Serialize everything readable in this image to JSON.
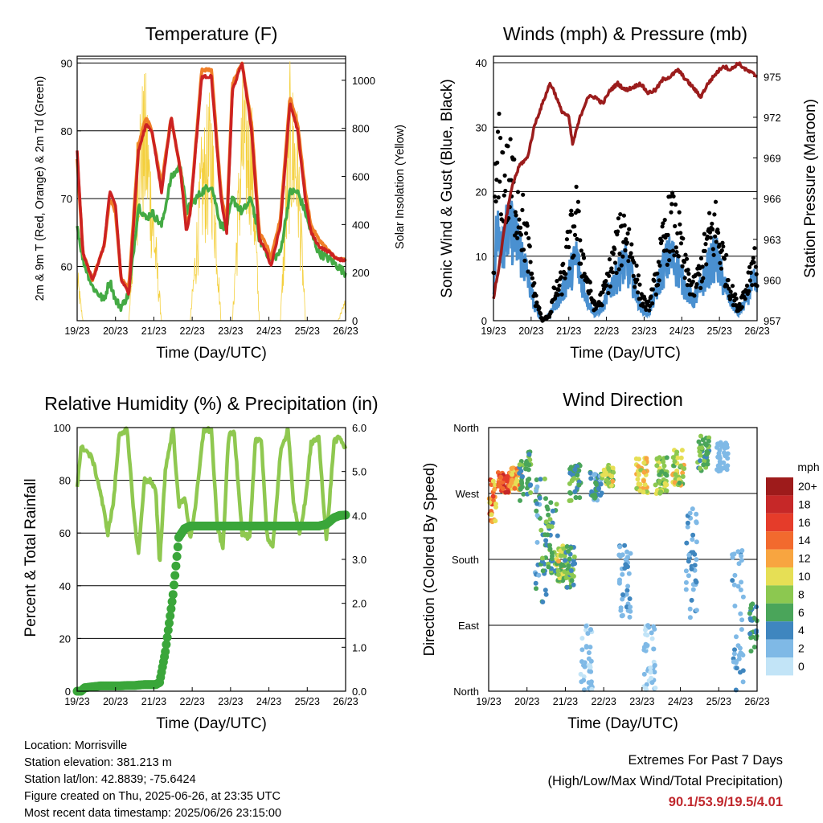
{
  "chart_data": [
    {
      "type": "line",
      "title": "Temperature (F)",
      "xlabel": "Time (Day/UTC)",
      "ylabel": "2m & 9m T (Red, Orange) & 2m Td (Green)",
      "ylabel_right": "Solar Insolation (Yellow)",
      "x_ticks": [
        "19/23",
        "20/23",
        "21/23",
        "22/23",
        "23/23",
        "24/23",
        "25/23",
        "26/23"
      ],
      "ylim": [
        52,
        91
      ],
      "yticks": [
        60,
        70,
        80,
        90
      ],
      "ylim_right": [
        0,
        1100
      ],
      "yticks_right": [
        0,
        200,
        400,
        600,
        800,
        1000
      ],
      "grid": "horizontal",
      "x_days": [
        0,
        0.15,
        0.4,
        0.7,
        0.85,
        1.0,
        1.15,
        1.35,
        1.6,
        1.8,
        1.95,
        2.2,
        2.45,
        2.7,
        2.85,
        2.95,
        3.25,
        3.5,
        3.75,
        3.9,
        4.05,
        4.3,
        4.55,
        4.75,
        4.95,
        5.05,
        5.3,
        5.55,
        5.75,
        5.95,
        6.1,
        6.3,
        6.6,
        6.8,
        7.0
      ],
      "series": [
        {
          "name": "2m T",
          "color": "#cc2222",
          "values": [
            77,
            62,
            58,
            63,
            71,
            69,
            58,
            56,
            77,
            81,
            80,
            71,
            82,
            74,
            65,
            68,
            88,
            88,
            70,
            65,
            86,
            90,
            80,
            64,
            62,
            60,
            66,
            84,
            80,
            70,
            65,
            63,
            62,
            61,
            61
          ]
        },
        {
          "name": "9m T",
          "color": "#f07f28",
          "values": [
            76,
            62,
            58,
            63,
            70,
            68,
            58,
            57,
            78,
            82,
            80,
            72,
            82,
            74,
            66,
            68,
            89,
            89,
            71,
            66,
            87,
            90,
            81,
            65,
            63,
            61,
            67,
            85,
            81,
            71,
            66,
            64,
            62,
            61,
            61
          ]
        },
        {
          "name": "2m Td",
          "color": "#44aa44",
          "values": [
            66,
            61,
            57,
            55,
            58,
            55,
            54,
            56,
            69,
            67,
            68,
            66,
            73,
            75,
            68,
            69,
            71,
            72,
            66,
            66,
            70,
            68,
            70,
            64,
            62,
            61,
            62,
            71,
            71,
            68,
            65,
            62,
            61,
            60,
            59
          ]
        },
        {
          "name": "Solar",
          "color": "#f4d03f",
          "axis": "right",
          "values": [
            250,
            0,
            0,
            0,
            0,
            0,
            0,
            0,
            1000,
            1050,
            650,
            0,
            0,
            0,
            0,
            0,
            800,
            1000,
            0,
            0,
            0,
            1050,
            1000,
            0,
            0,
            0,
            0,
            1080,
            900,
            0,
            0,
            0,
            0,
            0,
            100
          ]
        }
      ]
    },
    {
      "type": "scatter",
      "title": "Winds (mph) & Pressure (mb)",
      "xlabel": "Time (Day/UTC)",
      "ylabel": "Sonic Wind & Gust (Blue, Black)",
      "ylabel_right": "Station Pressure (Maroon)",
      "x_ticks": [
        "19/23",
        "20/23",
        "21/23",
        "22/23",
        "23/23",
        "24/23",
        "25/23",
        "26/23"
      ],
      "ylim": [
        0,
        41
      ],
      "yticks": [
        0,
        10,
        20,
        30,
        40
      ],
      "ylim_right": [
        957,
        976.5
      ],
      "yticks_right": [
        957,
        960,
        963,
        966,
        969,
        972,
        975
      ],
      "grid": "horizontal",
      "x_days": [
        0,
        0.05,
        0.15,
        0.3,
        0.5,
        0.7,
        0.9,
        1.1,
        1.3,
        1.5,
        1.6,
        1.8,
        2.0,
        2.1,
        2.2,
        2.3,
        2.5,
        2.7,
        2.9,
        3.1,
        3.3,
        3.5,
        3.7,
        3.9,
        4.1,
        4.3,
        4.5,
        4.7,
        4.9,
        5.1,
        5.3,
        5.5,
        5.7,
        5.9,
        6.1,
        6.3,
        6.5,
        6.7,
        6.9,
        7.0
      ],
      "series": [
        {
          "name": "Pressure",
          "color": "#9b1c1c",
          "axis": "right",
          "values": [
            958.5,
            959.5,
            961,
            964,
            967,
            968.5,
            969,
            971.5,
            973,
            974.5,
            974,
            972.5,
            972,
            970,
            971,
            972,
            973.5,
            973.5,
            973,
            974,
            974.5,
            974,
            974.2,
            974.5,
            973.8,
            974,
            974.8,
            975,
            975.5,
            974.8,
            974.2,
            973.5,
            974.5,
            975.2,
            975.8,
            975.5,
            976,
            975.5,
            975.2,
            975
          ]
        },
        {
          "name": "Gust",
          "color": "#000000",
          "values": [
            8,
            20,
            25,
            22,
            22,
            18,
            12,
            4,
            0,
            1,
            4,
            6,
            12,
            14,
            17,
            12,
            6,
            2,
            4,
            8,
            12,
            15,
            10,
            4,
            2,
            6,
            12,
            16,
            14,
            8,
            5,
            8,
            13,
            15,
            10,
            5,
            2,
            5,
            10,
            8
          ]
        },
        {
          "name": "Wind",
          "color": "#4a90d0",
          "values": [
            4,
            12,
            14,
            13,
            14,
            11,
            7,
            2,
            0,
            1,
            2,
            4,
            7,
            8,
            10,
            7,
            3,
            1,
            2,
            5,
            7,
            9,
            6,
            2,
            1,
            4,
            8,
            10,
            8,
            5,
            3,
            5,
            8,
            10,
            6,
            3,
            1,
            3,
            6,
            5
          ]
        }
      ]
    },
    {
      "type": "line",
      "title": "Relative Humidity (%) & Precipitation (in)",
      "xlabel": "Time (Day/UTC)",
      "ylabel": "Percent & Total Rainfall",
      "x_ticks": [
        "19/23",
        "20/23",
        "21/23",
        "22/23",
        "23/23",
        "24/23",
        "25/23",
        "26/23"
      ],
      "ylim": [
        0,
        100
      ],
      "yticks": [
        0,
        20,
        40,
        60,
        80,
        100
      ],
      "ylim_right": [
        0,
        6
      ],
      "yticks_right": [
        "0.0",
        "1.0",
        "2.0",
        "3.0",
        "4.0",
        "5.0",
        "6.0"
      ],
      "grid": "horizontal",
      "x_days": [
        0,
        0.1,
        0.2,
        0.4,
        0.6,
        0.8,
        0.95,
        1.1,
        1.3,
        1.5,
        1.6,
        1.75,
        1.9,
        2.05,
        2.15,
        2.3,
        2.5,
        2.65,
        2.8,
        2.95,
        3.1,
        3.3,
        3.5,
        3.65,
        3.8,
        3.95,
        4.1,
        4.3,
        4.5,
        4.65,
        4.8,
        4.95,
        5.1,
        5.3,
        5.5,
        5.65,
        5.8,
        5.95,
        6.1,
        6.3,
        6.5,
        6.7,
        6.85,
        7.0
      ],
      "series": [
        {
          "name": "RH",
          "color": "#8fc850",
          "values": [
            78,
            92,
            92,
            88,
            76,
            60,
            72,
            98,
            99,
            64,
            52,
            80,
            80,
            76,
            48,
            84,
            100,
            70,
            74,
            58,
            72,
            99,
            99,
            63,
            54,
            97,
            98,
            60,
            58,
            95,
            96,
            59,
            54,
            90,
            100,
            70,
            60,
            72,
            94,
            96,
            57,
            95,
            96,
            92
          ]
        },
        {
          "name": "Precip",
          "color": "#3aa63a",
          "axis": "right",
          "values": [
            0,
            0,
            0.08,
            0.1,
            0.12,
            0.12,
            0.12,
            0.12,
            0.13,
            0.13,
            0.14,
            0.15,
            0.15,
            0.15,
            0.2,
            0.9,
            2.2,
            3.5,
            3.7,
            3.76,
            3.76,
            3.76,
            3.76,
            3.76,
            3.76,
            3.76,
            3.76,
            3.76,
            3.76,
            3.76,
            3.76,
            3.76,
            3.76,
            3.76,
            3.76,
            3.76,
            3.76,
            3.76,
            3.76,
            3.76,
            3.8,
            3.95,
            4.0,
            4.01
          ]
        }
      ]
    },
    {
      "type": "scatter",
      "title": "Wind Direction",
      "xlabel": "Time (Day/UTC)",
      "ylabel": "Direction (Colored By Speed)",
      "x_ticks": [
        "19/23",
        "20/23",
        "21/23",
        "22/23",
        "23/23",
        "24/23",
        "25/23",
        "26/23"
      ],
      "yticks": [
        "North",
        "East",
        "South",
        "West",
        "North"
      ],
      "ylim": [
        0,
        360
      ],
      "grid": "horizontal",
      "colorbar": {
        "title": "mph",
        "labels": [
          "20+",
          "18",
          "16",
          "14",
          "12",
          "10",
          "8",
          "6",
          "4",
          "2",
          "0"
        ],
        "colors": [
          "#9e1b1b",
          "#c62828",
          "#e53c2a",
          "#f26a2e",
          "#f8a540",
          "#e6df55",
          "#8cc850",
          "#4aa55a",
          "#3f86bf",
          "#7fb9e6",
          "#c2e4f7"
        ]
      },
      "clusters": [
        {
          "day": 0.05,
          "dir": [
            230,
            290
          ],
          "speed": [
            10,
            16
          ]
        },
        {
          "day": 0.4,
          "dir": [
            270,
            300
          ],
          "speed": [
            12,
            18
          ]
        },
        {
          "day": 0.7,
          "dir": [
            275,
            305
          ],
          "speed": [
            10,
            14
          ]
        },
        {
          "day": 0.95,
          "dir": [
            260,
            330
          ],
          "speed": [
            4,
            8
          ]
        },
        {
          "day": 1.35,
          "dir": [
            120,
            290
          ],
          "speed": [
            2,
            8
          ]
        },
        {
          "day": 1.65,
          "dir": [
            160,
            260
          ],
          "speed": [
            3,
            8
          ]
        },
        {
          "day": 1.9,
          "dir": [
            150,
            200
          ],
          "speed": [
            6,
            12
          ]
        },
        {
          "day": 2.1,
          "dir": [
            140,
            200
          ],
          "speed": [
            3,
            9
          ]
        },
        {
          "day": 2.25,
          "dir": [
            260,
            310
          ],
          "speed": [
            4,
            8
          ]
        },
        {
          "day": 2.55,
          "dir": [
            0,
            90
          ],
          "speed": [
            0,
            3
          ]
        },
        {
          "day": 2.8,
          "dir": [
            260,
            300
          ],
          "speed": [
            2,
            6
          ]
        },
        {
          "day": 3.1,
          "dir": [
            280,
            310
          ],
          "speed": [
            6,
            12
          ]
        },
        {
          "day": 3.55,
          "dir": [
            100,
            200
          ],
          "speed": [
            1,
            4
          ]
        },
        {
          "day": 4.0,
          "dir": [
            270,
            320
          ],
          "speed": [
            8,
            13
          ]
        },
        {
          "day": 4.2,
          "dir": [
            0,
            90
          ],
          "speed": [
            0,
            2
          ]
        },
        {
          "day": 4.5,
          "dir": [
            270,
            320
          ],
          "speed": [
            6,
            10
          ]
        },
        {
          "day": 4.95,
          "dir": [
            280,
            330
          ],
          "speed": [
            6,
            12
          ]
        },
        {
          "day": 5.3,
          "dir": [
            100,
            250
          ],
          "speed": [
            1,
            5
          ]
        },
        {
          "day": 5.6,
          "dir": [
            300,
            350
          ],
          "speed": [
            4,
            8
          ]
        },
        {
          "day": 6.1,
          "dir": [
            300,
            340
          ],
          "speed": [
            1,
            3
          ]
        },
        {
          "day": 6.5,
          "dir": [
            0,
            200
          ],
          "speed": [
            1,
            4
          ]
        },
        {
          "day": 6.95,
          "dir": [
            50,
            120
          ],
          "speed": [
            3,
            7
          ]
        }
      ]
    }
  ],
  "info": {
    "location": "Location: Morrisville",
    "elevation": "Station elevation: 381.213 m",
    "latlon": "Station lat/lon: 42.8839; -75.6424",
    "created": "Figure created on Thu, 2025-06-26, at 23:35 UTC",
    "recent": "Most recent data timestamp: 2025/06/26 23:15:00"
  },
  "extremes": {
    "title": "Extremes For Past 7 Days",
    "subtitle": "(High/Low/Max Wind/Total Precipitation)",
    "values": "90.1/53.9/19.5/4.01"
  }
}
